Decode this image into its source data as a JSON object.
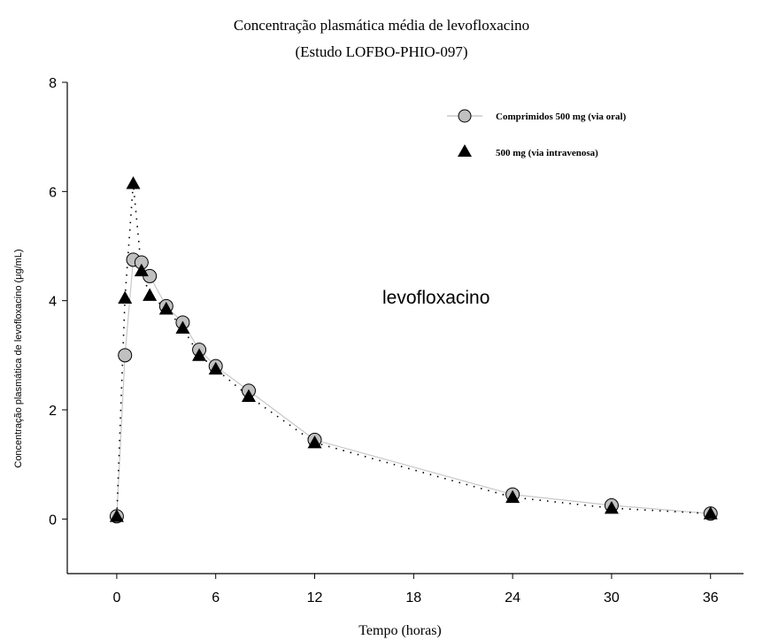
{
  "chart_data": {
    "type": "line",
    "title": "Concentração plasmática média de levofloxacino",
    "subtitle": "(Estudo LOFBO-PHIO-097)",
    "xlabel": "Tempo (horas)",
    "ylabel": "Concentração plasmática de levofloxacino (μg/mL)",
    "xlim": [
      -3,
      38
    ],
    "ylim": [
      -1,
      8
    ],
    "x_ticks": [
      0,
      6,
      12,
      18,
      24,
      30,
      36
    ],
    "x_tick_labels": [
      "0",
      "6",
      "12",
      "18",
      "24",
      "30",
      "36"
    ],
    "y_ticks": [
      0,
      2,
      4,
      6,
      8
    ],
    "y_tick_labels": [
      "0",
      "2",
      "4",
      "6",
      "8"
    ],
    "grid": false,
    "legend_position": "top-right",
    "annotation": "levofloxacino",
    "series": [
      {
        "name": "Comprimidos 500 mg (via oral)",
        "marker": "circle",
        "line_style": "solid",
        "marker_color": "#c0c0c0",
        "line_color": "#c8c8c8",
        "x": [
          0,
          0.5,
          1,
          1.5,
          2,
          3,
          4,
          5,
          6,
          8,
          12,
          24,
          30,
          36
        ],
        "y": [
          0.05,
          3.0,
          4.75,
          4.7,
          4.45,
          3.9,
          3.6,
          3.1,
          2.8,
          2.35,
          1.45,
          0.45,
          0.25,
          0.1
        ]
      },
      {
        "name": "500 mg (via intravenosa)",
        "marker": "triangle",
        "line_style": "dotted",
        "marker_color": "#000000",
        "line_color": "#000000",
        "x": [
          0,
          0.5,
          1,
          1.5,
          2,
          3,
          4,
          5,
          6,
          8,
          12,
          24,
          30,
          36
        ],
        "y": [
          0.05,
          4.05,
          6.15,
          4.55,
          4.1,
          3.85,
          3.5,
          3.0,
          2.75,
          2.25,
          1.4,
          0.4,
          0.2,
          0.1
        ]
      }
    ]
  }
}
